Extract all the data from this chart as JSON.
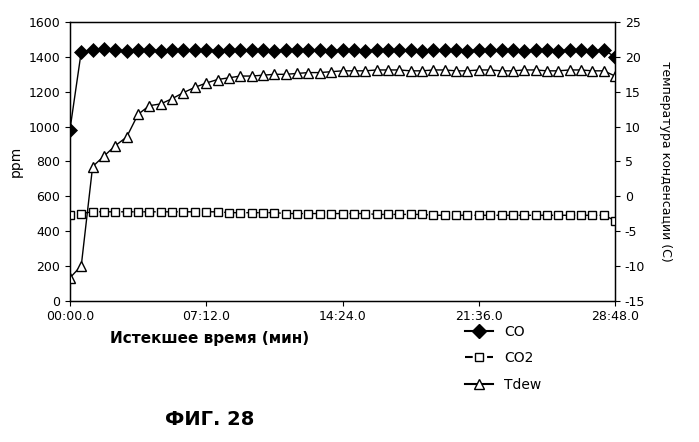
{
  "title": "",
  "xlabel": "Истекшее время (мин)",
  "ylabel_left": "ppm",
  "ylabel_right": "температура конденсации (С)",
  "fig_label": "ФИГ. 28",
  "xlim": [
    0,
    1728
  ],
  "ylim_left": [
    0,
    1600
  ],
  "ylim_right": [
    -15,
    25
  ],
  "xtick_positions": [
    0,
    432,
    864,
    1296,
    1728
  ],
  "xtick_labels": [
    "00:00.0",
    "07:12.0",
    "14:24.0",
    "21:36.0",
    "28:48.0"
  ],
  "ytick_left": [
    0,
    200,
    400,
    600,
    800,
    1000,
    1200,
    1400,
    1600
  ],
  "ytick_right": [
    -15,
    -10,
    -5,
    0,
    5,
    10,
    15,
    20,
    25
  ],
  "CO_x": [
    0,
    36,
    72,
    108,
    144,
    180,
    216,
    252,
    288,
    324,
    360,
    396,
    432,
    468,
    504,
    540,
    576,
    612,
    648,
    684,
    720,
    756,
    792,
    828,
    864,
    900,
    936,
    972,
    1008,
    1044,
    1080,
    1116,
    1152,
    1188,
    1224,
    1260,
    1296,
    1332,
    1368,
    1404,
    1440,
    1476,
    1512,
    1548,
    1584,
    1620,
    1656,
    1692,
    1728
  ],
  "CO_y": [
    980,
    1430,
    1440,
    1445,
    1440,
    1435,
    1440,
    1440,
    1435,
    1440,
    1440,
    1440,
    1440,
    1435,
    1440,
    1440,
    1440,
    1440,
    1435,
    1440,
    1440,
    1440,
    1440,
    1435,
    1440,
    1440,
    1435,
    1440,
    1440,
    1440,
    1440,
    1435,
    1440,
    1440,
    1440,
    1435,
    1440,
    1440,
    1440,
    1440,
    1435,
    1440,
    1440,
    1435,
    1440,
    1440,
    1435,
    1440,
    1400
  ],
  "CO2_x": [
    0,
    36,
    72,
    108,
    144,
    180,
    216,
    252,
    288,
    324,
    360,
    396,
    432,
    468,
    504,
    540,
    576,
    612,
    648,
    684,
    720,
    756,
    792,
    828,
    864,
    900,
    936,
    972,
    1008,
    1044,
    1080,
    1116,
    1152,
    1188,
    1224,
    1260,
    1296,
    1332,
    1368,
    1404,
    1440,
    1476,
    1512,
    1548,
    1584,
    1620,
    1656,
    1692,
    1728
  ],
  "CO2_y": [
    490,
    500,
    510,
    510,
    510,
    510,
    510,
    510,
    510,
    510,
    510,
    510,
    510,
    510,
    505,
    505,
    505,
    505,
    505,
    500,
    500,
    500,
    500,
    500,
    500,
    500,
    500,
    495,
    495,
    495,
    495,
    495,
    490,
    490,
    490,
    490,
    490,
    490,
    490,
    490,
    490,
    490,
    490,
    490,
    490,
    490,
    490,
    490,
    460
  ],
  "Tdew_x": [
    0,
    36,
    72,
    108,
    144,
    180,
    216,
    252,
    288,
    324,
    360,
    396,
    432,
    468,
    504,
    540,
    576,
    612,
    648,
    684,
    720,
    756,
    792,
    828,
    864,
    900,
    936,
    972,
    1008,
    1044,
    1080,
    1116,
    1152,
    1188,
    1224,
    1260,
    1296,
    1332,
    1368,
    1404,
    1440,
    1476,
    1512,
    1548,
    1584,
    1620,
    1656,
    1692,
    1728
  ],
  "Tdew_ppm": [
    130,
    200,
    770,
    830,
    890,
    940,
    1070,
    1120,
    1130,
    1160,
    1195,
    1225,
    1250,
    1270,
    1280,
    1290,
    1290,
    1295,
    1300,
    1300,
    1305,
    1310,
    1310,
    1315,
    1320,
    1320,
    1320,
    1325,
    1325,
    1325,
    1320,
    1320,
    1325,
    1325,
    1320,
    1320,
    1325,
    1325,
    1320,
    1320,
    1325,
    1325,
    1320,
    1320,
    1325,
    1325,
    1320,
    1320,
    1290
  ],
  "bg_color": "#ffffff",
  "co_color": "#000000",
  "co2_color": "#000000",
  "tdew_color": "#000000"
}
